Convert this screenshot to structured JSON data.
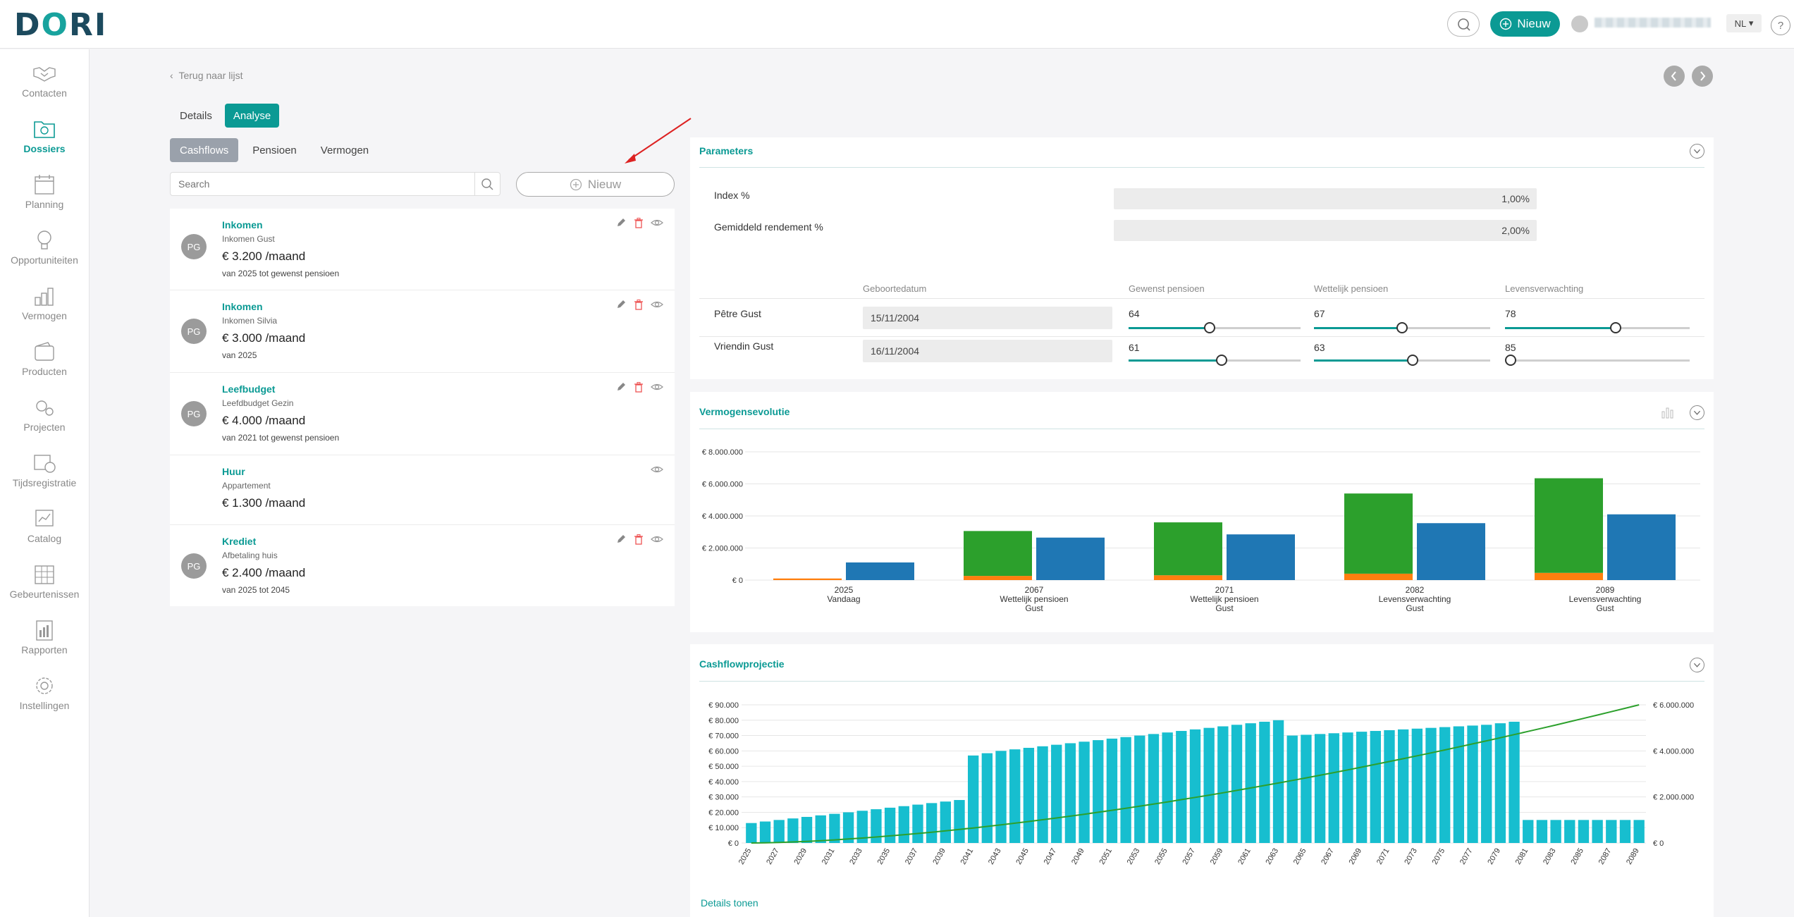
{
  "app": {
    "logo_text": "D",
    "logo_o": "O",
    "logo_rest": "RI",
    "new_label": "Nieuw",
    "language": "NL",
    "help": "?"
  },
  "sidebar": {
    "items": [
      {
        "label": "Contacten",
        "icon": "handshake-icon"
      },
      {
        "label": "Dossiers",
        "icon": "folder-icon",
        "active": true
      },
      {
        "label": "Planning",
        "icon": "calendar-icon"
      },
      {
        "label": "Opportuniteiten",
        "icon": "lightbulb-icon"
      },
      {
        "label": "Vermogen",
        "icon": "coins-icon"
      },
      {
        "label": "Producten",
        "icon": "wallet-icon"
      },
      {
        "label": "Projecten",
        "icon": "gears-icon"
      },
      {
        "label": "Tijdsregistratie",
        "icon": "clock-calendar-icon"
      },
      {
        "label": "Catalog",
        "icon": "catalog-icon"
      },
      {
        "label": "Gebeurtenissen",
        "icon": "grid-calendar-icon"
      },
      {
        "label": "Rapporten",
        "icon": "report-icon"
      },
      {
        "label": "Instellingen",
        "icon": "settings-icon"
      }
    ]
  },
  "nav": {
    "back": "Terug naar lijst",
    "tabs": [
      "Details",
      "Analyse"
    ],
    "subtabs": [
      "Cashflows",
      "Pensioen",
      "Vermogen"
    ]
  },
  "list": {
    "search_placeholder": "Search",
    "new_label": "Nieuw",
    "items": [
      {
        "avatar": "PG",
        "title": "Inkomen",
        "sub": "Inkomen Gust",
        "amount": "€ 3.200 /maand",
        "period": "van 2025 tot gewenst pensioen"
      },
      {
        "avatar": "PG",
        "title": "Inkomen",
        "sub": "Inkomen Silvia",
        "amount": "€ 3.000 /maand",
        "period": "van 2025"
      },
      {
        "avatar": "PG",
        "title": "Leefbudget",
        "sub": "Leefdbudget Gezin",
        "amount": "€ 4.000 /maand",
        "period": "van 2021 tot gewenst pensioen"
      },
      {
        "avatar": "",
        "title": "Huur",
        "sub": "Appartement",
        "amount": "€ 1.300 /maand",
        "period": ""
      },
      {
        "avatar": "PG",
        "title": "Krediet",
        "sub": "Afbetaling huis",
        "amount": "€ 2.400 /maand",
        "period": "van 2025 tot 2045"
      }
    ]
  },
  "parameters": {
    "title": "Parameters",
    "index_label": "Index %",
    "index_value": "1,00%",
    "return_label": "Gemiddeld rendement %",
    "return_value": "2,00%",
    "headers": [
      "Geboortedatum",
      "Gewenst pensioen",
      "Wettelijk pensioen",
      "Levensverwachting"
    ],
    "people": [
      {
        "name": "Pêtre Gust",
        "birth": "15/11/2004",
        "gewenst": "64",
        "wettelijk": "67",
        "leven": "78",
        "gewenst_pos": 0.47,
        "wettelijk_pos": 0.5,
        "leven_pos": 0.6
      },
      {
        "name": "Vriendin Gust",
        "birth": "16/11/2004",
        "gewenst": "61",
        "wettelijk": "63",
        "leven": "85",
        "gewenst_pos": 0.54,
        "wettelijk_pos": 0.56,
        "leven_pos": 0.0
      }
    ]
  },
  "vermogen": {
    "title": "Vermogensevolutie"
  },
  "cashflow": {
    "title": "Cashflowprojectie",
    "details_link": "Details tonen"
  },
  "colors": {
    "accent": "#0b9a94",
    "green": "#2ca02c",
    "orange": "#ff7f0e",
    "blue": "#1f77b4",
    "cyan": "#17becf"
  },
  "chart_data": [
    {
      "type": "bar",
      "name": "Vermogensevolutie",
      "categories": [
        [
          "2025",
          "Vandaag"
        ],
        [
          "2067",
          "Wettelijk pensioen",
          "Gust"
        ],
        [
          "2071",
          "Wettelijk pensioen",
          "Gust"
        ],
        [
          "2082",
          "Levensverwachting",
          "Gust"
        ],
        [
          "2089",
          "Levensverwachting",
          "Gust"
        ]
      ],
      "stacked_series": [
        {
          "color": "#ff7f0e",
          "values": [
            100000,
            260000,
            300000,
            400000,
            450000
          ]
        },
        {
          "color": "#2ca02c",
          "values": [
            0,
            2800000,
            3300000,
            5000000,
            5900000
          ]
        }
      ],
      "series2": {
        "color": "#1f77b4",
        "values": [
          1100000,
          2650000,
          2850000,
          3550000,
          4100000
        ]
      },
      "yticks": [
        "€ 0",
        "€ 2.000.000",
        "€ 4.000.000",
        "€ 6.000.000",
        "€ 8.000.000"
      ],
      "ylim": [
        0,
        8000000
      ]
    },
    {
      "type": "bar",
      "name": "Cashflowprojectie",
      "x_start": 2025,
      "x_end": 2089,
      "xticks": [
        "2025",
        "2027",
        "2029",
        "2031",
        "2033",
        "2035",
        "2037",
        "2039",
        "2041",
        "2043",
        "2045",
        "2047",
        "2049",
        "2051",
        "2053",
        "2055",
        "2057",
        "2059",
        "2061",
        "2063",
        "2065",
        "2067",
        "2069",
        "2071",
        "2073",
        "2075",
        "2077",
        "2079",
        "2081",
        "2083",
        "2085",
        "2087",
        "2089"
      ],
      "values": [
        13000,
        14000,
        15000,
        16000,
        17000,
        18000,
        19000,
        20000,
        21000,
        22000,
        23000,
        24000,
        25000,
        26000,
        27000,
        28000,
        57000,
        58500,
        60000,
        61000,
        62000,
        63000,
        64000,
        65000,
        66000,
        67000,
        68000,
        69000,
        70000,
        71000,
        72000,
        73000,
        74000,
        75000,
        76000,
        77000,
        78000,
        79000,
        80000,
        70000,
        70500,
        71000,
        71500,
        72000,
        72500,
        73000,
        73500,
        74000,
        74500,
        75000,
        75500,
        76000,
        76500,
        77000,
        78000,
        79000,
        15000,
        15000,
        15000,
        15000,
        15000,
        15000,
        15000,
        15000,
        15000
      ],
      "yticks_left": [
        "€ 0",
        "€ 10.000",
        "€ 20.000",
        "€ 30.000",
        "€ 40.000",
        "€ 50.000",
        "€ 60.000",
        "€ 70.000",
        "€ 80.000",
        "€ 90.000"
      ],
      "ylim_left": [
        0,
        90000
      ],
      "line": {
        "color": "#2ca02c",
        "values_start": 0,
        "values_end": 6000000,
        "shape": "convex"
      },
      "yticks_right": [
        "€ 0",
        "€ 2.000.000",
        "€ 4.000.000",
        "€ 6.000.000"
      ],
      "ylim_right": [
        0,
        6000000
      ]
    }
  ]
}
